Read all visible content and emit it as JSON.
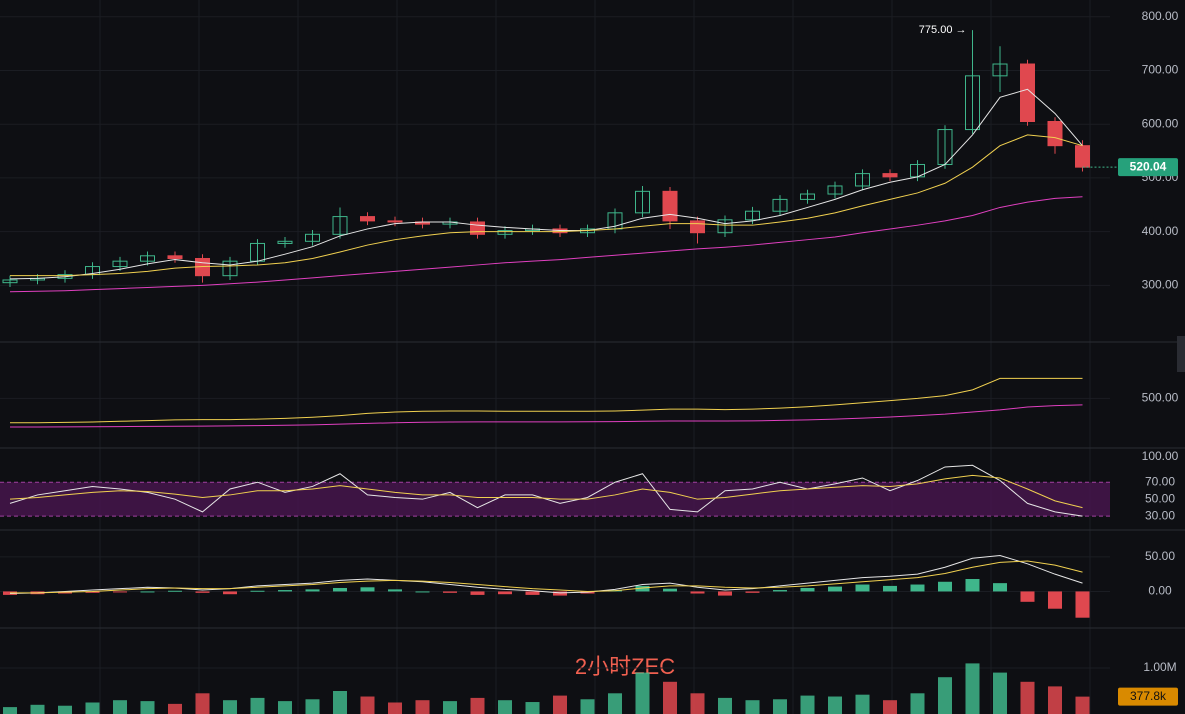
{
  "chart_data": [
    {
      "type": "candlestick",
      "ylim": [
        202,
        820
      ],
      "grid": true,
      "yticks": [
        {
          "value": 300,
          "label": "300.00"
        },
        {
          "value": 400,
          "label": "400.00"
        },
        {
          "value": 500,
          "label": "500.00"
        },
        {
          "value": 600,
          "label": "600.00"
        },
        {
          "value": 700,
          "label": "700.00"
        },
        {
          "value": 800,
          "label": "800.00"
        }
      ],
      "up_color": "#3fb68b",
      "down_color": "#e0484f",
      "candles": {
        "open": [
          305,
          310,
          313,
          320,
          335,
          345,
          355,
          350,
          318,
          345,
          378,
          382,
          395,
          428,
          420,
          418,
          414,
          418,
          395,
          402,
          405,
          398,
          405,
          435,
          475,
          420,
          398,
          422,
          438,
          460,
          470,
          485,
          508,
          502,
          525,
          590,
          690,
          712,
          605,
          560
        ],
        "high": [
          318,
          321,
          328,
          343,
          353,
          363,
          363,
          358,
          353,
          386,
          390,
          403,
          445,
          436,
          428,
          426,
          426,
          426,
          410,
          413,
          413,
          413,
          443,
          485,
          483,
          428,
          430,
          446,
          468,
          478,
          493,
          516,
          516,
          533,
          598,
          775,
          745,
          720,
          613,
          570
        ],
        "low": [
          297,
          302,
          305,
          312,
          327,
          337,
          342,
          305,
          310,
          337,
          370,
          374,
          387,
          412,
          410,
          406,
          406,
          387,
          387,
          394,
          390,
          390,
          397,
          427,
          405,
          378,
          390,
          414,
          430,
          452,
          462,
          477,
          494,
          494,
          517,
          582,
          660,
          597,
          545,
          512
        ],
        "close": [
          310,
          313,
          320,
          335,
          345,
          355,
          350,
          318,
          345,
          378,
          382,
          395,
          428,
          420,
          418,
          414,
          418,
          395,
          402,
          405,
          398,
          405,
          435,
          475,
          420,
          398,
          422,
          438,
          460,
          470,
          485,
          508,
          502,
          525,
          590,
          690,
          712,
          605,
          560,
          520.04
        ]
      },
      "high_label": "775.00 →",
      "series": [
        {
          "color": "#e6e6e6",
          "values": [
            312,
            313,
            316,
            322,
            330,
            340,
            348,
            342,
            338,
            345,
            358,
            372,
            392,
            405,
            415,
            418,
            418,
            412,
            408,
            405,
            402,
            402,
            410,
            425,
            432,
            425,
            415,
            420,
            430,
            445,
            460,
            478,
            492,
            502,
            525,
            580,
            650,
            665,
            620,
            560
          ]
        },
        {
          "color": "#f0d050",
          "values": [
            318,
            318,
            318,
            320,
            322,
            326,
            332,
            335,
            336,
            338,
            342,
            350,
            362,
            375,
            385,
            392,
            398,
            400,
            400,
            400,
            400,
            402,
            405,
            410,
            415,
            415,
            412,
            412,
            418,
            425,
            435,
            448,
            460,
            472,
            490,
            520,
            560,
            580,
            575,
            560
          ]
        },
        {
          "color": "#e040c0",
          "values": [
            288,
            289,
            290,
            292,
            294,
            296,
            298,
            300,
            303,
            306,
            310,
            314,
            318,
            322,
            326,
            330,
            334,
            338,
            342,
            345,
            348,
            352,
            356,
            360,
            364,
            368,
            371,
            375,
            380,
            385,
            390,
            398,
            405,
            412,
            420,
            430,
            445,
            455,
            462,
            465
          ]
        }
      ]
    },
    {
      "type": "line",
      "ylim": [
        167,
        867
      ],
      "grid": true,
      "yticks": [
        {
          "value": 500,
          "label": "500.00"
        }
      ],
      "series": [
        {
          "color": "#f0d050",
          "values": [
            330,
            330,
            332,
            335,
            340,
            345,
            350,
            352,
            352,
            355,
            360,
            368,
            380,
            395,
            405,
            410,
            412,
            412,
            410,
            410,
            410,
            410,
            412,
            418,
            425,
            425,
            422,
            425,
            432,
            442,
            455,
            470,
            485,
            500,
            520,
            560,
            640,
            640,
            640,
            640
          ]
        },
        {
          "color": "#e040c0",
          "values": [
            300,
            300,
            301,
            302,
            303,
            304,
            305,
            306,
            308,
            310,
            312,
            315,
            320,
            325,
            330,
            333,
            335,
            336,
            336,
            336,
            336,
            337,
            338,
            340,
            342,
            342,
            342,
            343,
            346,
            350,
            355,
            362,
            370,
            380,
            390,
            405,
            420,
            440,
            450,
            455
          ]
        }
      ]
    },
    {
      "type": "line",
      "ylim": [
        16,
        108
      ],
      "grid": false,
      "yticks": [
        {
          "value": 30,
          "label": "30.00"
        },
        {
          "value": 50,
          "label": "50.00"
        },
        {
          "value": 70,
          "label": "70.00"
        },
        {
          "value": 100,
          "label": "100.00"
        }
      ],
      "band": [
        30,
        70
      ],
      "band_color": "#4a1550",
      "series": [
        {
          "color": "#e6e6e6",
          "values": [
            45,
            55,
            60,
            65,
            62,
            58,
            50,
            35,
            62,
            70,
            58,
            65,
            80,
            55,
            52,
            50,
            58,
            40,
            55,
            55,
            45,
            52,
            70,
            80,
            38,
            35,
            60,
            62,
            70,
            62,
            68,
            75,
            60,
            72,
            88,
            90,
            72,
            45,
            35,
            30
          ]
        },
        {
          "color": "#f0d050",
          "values": [
            50,
            52,
            55,
            58,
            60,
            59,
            56,
            52,
            55,
            60,
            60,
            62,
            66,
            62,
            58,
            55,
            55,
            52,
            52,
            52,
            50,
            50,
            55,
            62,
            58,
            50,
            52,
            56,
            60,
            62,
            64,
            66,
            65,
            68,
            74,
            78,
            75,
            62,
            48,
            40
          ]
        }
      ]
    },
    {
      "type": "macd",
      "ylim": [
        -50,
        86
      ],
      "grid": true,
      "yticks": [
        {
          "value": 0,
          "label": "0.00"
        },
        {
          "value": 50,
          "label": "50.00"
        }
      ],
      "up_color": "#3fb68b",
      "down_color": "#e0484f",
      "values": [
        -5,
        -4,
        -3,
        -2,
        -1,
        0,
        1,
        -2,
        -4,
        1,
        2,
        3,
        5,
        6,
        3,
        0,
        -2,
        -5,
        -4,
        -5,
        -6,
        -3,
        2,
        8,
        4,
        -3,
        -6,
        -2,
        2,
        5,
        7,
        10,
        8,
        10,
        14,
        18,
        12,
        -15,
        -25,
        -38
      ],
      "series": [
        {
          "color": "#e6e6e6",
          "values": [
            -3,
            -2,
            0,
            2,
            4,
            6,
            5,
            2,
            4,
            8,
            10,
            12,
            16,
            18,
            16,
            14,
            10,
            6,
            3,
            1,
            -2,
            -1,
            3,
            10,
            12,
            6,
            2,
            4,
            8,
            12,
            16,
            20,
            22,
            25,
            35,
            48,
            52,
            40,
            25,
            12
          ]
        },
        {
          "color": "#f0d050",
          "values": [
            -2,
            -2,
            -1,
            0,
            2,
            4,
            5,
            4,
            4,
            6,
            8,
            10,
            13,
            15,
            16,
            15,
            13,
            10,
            7,
            4,
            2,
            0,
            1,
            5,
            8,
            8,
            6,
            5,
            6,
            8,
            11,
            14,
            17,
            20,
            26,
            35,
            42,
            44,
            38,
            28
          ]
        }
      ]
    },
    {
      "type": "bar",
      "ylim": [
        0,
        1826000
      ],
      "grid": true,
      "yticks": [
        {
          "value": 1000000,
          "label": "1.00M"
        }
      ],
      "up_color": "#3fb68b",
      "down_color": "#e0484f",
      "values": [
        150000,
        200000,
        180000,
        250000,
        300000,
        280000,
        220000,
        450000,
        300000,
        350000,
        280000,
        320000,
        500000,
        380000,
        250000,
        300000,
        280000,
        350000,
        300000,
        260000,
        400000,
        320000,
        450000,
        900000,
        700000,
        450000,
        350000,
        300000,
        320000,
        400000,
        380000,
        420000,
        300000,
        450000,
        800000,
        1100000,
        900000,
        700000,
        600000,
        377800
      ],
      "last_label": "377.8k"
    }
  ],
  "watermark": "2小时ZEC"
}
